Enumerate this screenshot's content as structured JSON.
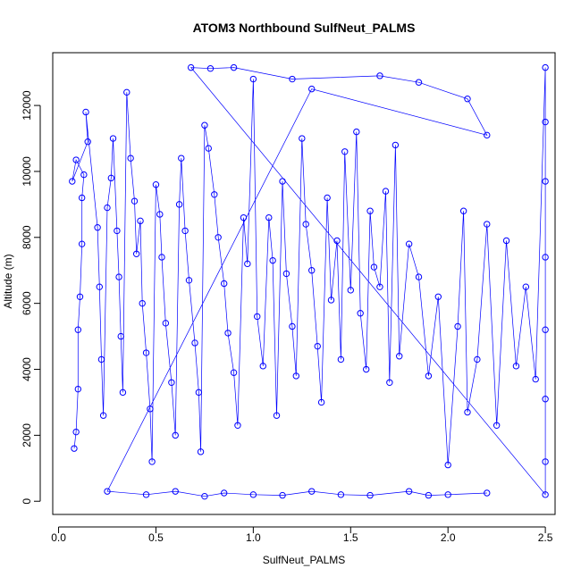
{
  "chart_data": {
    "type": "scatter",
    "title": "ATOM3 Northbound SulfNeut_PALMS",
    "xlabel": "SulfNeut_PALMS",
    "ylabel": "Altitude (m)",
    "xlim": [
      -0.03,
      2.55
    ],
    "ylim": [
      -400,
      13600
    ],
    "x_ticks": [
      0,
      0.5,
      1,
      1.5,
      2,
      2.5
    ],
    "x_tick_labels": [
      "0.0",
      "0.5",
      "1.0",
      "1.5",
      "2.0",
      "2.5"
    ],
    "y_ticks": [
      0,
      2000,
      4000,
      6000,
      8000,
      10000,
      12000
    ],
    "y_tick_labels": [
      "0",
      "2000",
      "4000",
      "6000",
      "8000",
      "10000",
      "12000"
    ],
    "grid": false,
    "marker": "open-circle",
    "connected": true,
    "series_color": "#0000ff",
    "series": [
      {
        "name": "",
        "points": [
          [
            0.08,
            1600
          ],
          [
            0.09,
            2100
          ],
          [
            0.1,
            3400
          ],
          [
            0.1,
            5200
          ],
          [
            0.11,
            6200
          ],
          [
            0.12,
            7800
          ],
          [
            0.12,
            9200
          ],
          [
            0.13,
            9900
          ],
          [
            0.09,
            10350
          ],
          [
            0.07,
            9700
          ],
          [
            0.15,
            10900
          ],
          [
            0.14,
            11800
          ],
          [
            0.2,
            8300
          ],
          [
            0.21,
            6500
          ],
          [
            0.22,
            4300
          ],
          [
            0.23,
            2600
          ],
          [
            0.25,
            8900
          ],
          [
            0.27,
            9800
          ],
          [
            0.28,
            11000
          ],
          [
            0.3,
            8200
          ],
          [
            0.31,
            6800
          ],
          [
            0.32,
            5000
          ],
          [
            0.33,
            3300
          ],
          [
            0.35,
            12400
          ],
          [
            0.37,
            10400
          ],
          [
            0.39,
            9100
          ],
          [
            0.4,
            7500
          ],
          [
            0.42,
            8500
          ],
          [
            0.43,
            6000
          ],
          [
            0.45,
            4500
          ],
          [
            0.47,
            2800
          ],
          [
            0.48,
            1200
          ],
          [
            0.5,
            9600
          ],
          [
            0.52,
            8700
          ],
          [
            0.53,
            7400
          ],
          [
            0.55,
            5400
          ],
          [
            0.58,
            3600
          ],
          [
            0.6,
            2000
          ],
          [
            0.62,
            9000
          ],
          [
            0.63,
            10400
          ],
          [
            0.65,
            8200
          ],
          [
            0.67,
            6700
          ],
          [
            0.7,
            4800
          ],
          [
            0.72,
            3300
          ],
          [
            0.73,
            1500
          ],
          [
            0.75,
            11400
          ],
          [
            0.77,
            10700
          ],
          [
            0.8,
            9300
          ],
          [
            0.82,
            8000
          ],
          [
            0.85,
            6600
          ],
          [
            0.87,
            5100
          ],
          [
            0.9,
            3900
          ],
          [
            0.92,
            2300
          ],
          [
            0.95,
            8600
          ],
          [
            0.97,
            7200
          ],
          [
            1.0,
            12800
          ],
          [
            1.02,
            5600
          ],
          [
            1.05,
            4100
          ],
          [
            1.08,
            8600
          ],
          [
            1.1,
            7300
          ],
          [
            1.12,
            2600
          ],
          [
            1.15,
            9700
          ],
          [
            1.17,
            6900
          ],
          [
            1.2,
            5300
          ],
          [
            1.22,
            3800
          ],
          [
            1.25,
            11000
          ],
          [
            1.27,
            8400
          ],
          [
            1.3,
            7000
          ],
          [
            1.33,
            4700
          ],
          [
            1.35,
            3000
          ],
          [
            1.38,
            9200
          ],
          [
            1.4,
            6100
          ],
          [
            1.43,
            7900
          ],
          [
            1.45,
            4300
          ],
          [
            1.47,
            10600
          ],
          [
            1.5,
            6400
          ],
          [
            1.53,
            11200
          ],
          [
            1.55,
            5700
          ],
          [
            1.58,
            4000
          ],
          [
            1.6,
            8800
          ],
          [
            1.62,
            7100
          ],
          [
            1.65,
            6500
          ],
          [
            1.68,
            9400
          ],
          [
            1.7,
            3600
          ],
          [
            1.73,
            10800
          ],
          [
            1.75,
            4400
          ],
          [
            1.8,
            7800
          ],
          [
            1.85,
            6800
          ],
          [
            1.9,
            3800
          ],
          [
            1.95,
            6200
          ],
          [
            2.0,
            1100
          ],
          [
            2.05,
            5300
          ],
          [
            2.08,
            8800
          ],
          [
            2.1,
            2700
          ],
          [
            2.15,
            4300
          ],
          [
            2.2,
            8400
          ],
          [
            2.25,
            2300
          ],
          [
            2.3,
            7900
          ],
          [
            2.35,
            4100
          ],
          [
            2.4,
            6500
          ],
          [
            2.45,
            3700
          ],
          [
            2.5,
            13150
          ],
          [
            2.5,
            11500
          ],
          [
            2.5,
            9700
          ],
          [
            2.5,
            7400
          ],
          [
            2.5,
            5200
          ],
          [
            2.5,
            3100
          ],
          [
            2.5,
            1200
          ],
          [
            2.5,
            200
          ],
          [
            0.68,
            13150
          ],
          [
            0.78,
            13120
          ],
          [
            0.9,
            13150
          ],
          [
            1.2,
            12800
          ],
          [
            1.65,
            12900
          ],
          [
            1.85,
            12700
          ],
          [
            2.1,
            12200
          ],
          [
            2.2,
            11100
          ],
          [
            1.3,
            12500
          ],
          [
            0.25,
            300
          ],
          [
            0.45,
            200
          ],
          [
            0.6,
            300
          ],
          [
            0.75,
            150
          ],
          [
            0.85,
            250
          ],
          [
            1.0,
            200
          ],
          [
            1.15,
            180
          ],
          [
            1.3,
            300
          ],
          [
            1.45,
            200
          ],
          [
            1.6,
            180
          ],
          [
            1.8,
            300
          ],
          [
            1.9,
            180
          ],
          [
            2.0,
            200
          ],
          [
            2.2,
            250
          ]
        ]
      }
    ]
  }
}
